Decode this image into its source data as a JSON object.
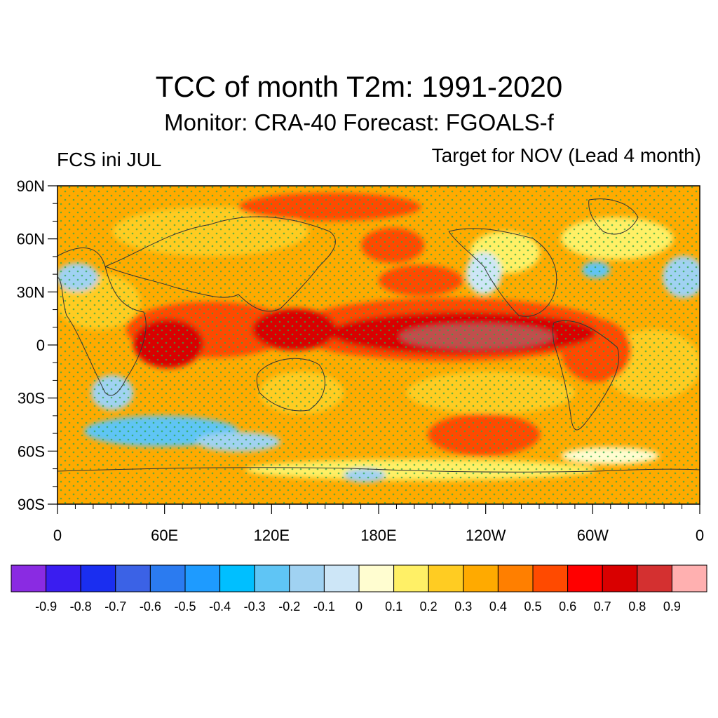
{
  "title": "TCC of month T2m: 1991-2020",
  "subtitle": "Monitor: CRA-40   Forecast: FGOALS-f",
  "left_label": "FCS ini JUL",
  "right_label": "Target for NOV (Lead 4 month)",
  "map": {
    "projection": "cylindrical equidistant",
    "lon_range": [
      0,
      360
    ],
    "lat_range": [
      -90,
      90
    ],
    "lat_labels": [
      "90N",
      "60N",
      "30N",
      "0",
      "30S",
      "60S",
      "90S"
    ],
    "lon_labels": [
      "0",
      "60E",
      "120E",
      "180E",
      "120W",
      "60W",
      "0"
    ],
    "stippling_color": "#2ea84a",
    "coastline_color": "#333333"
  },
  "colorbar": {
    "labels": [
      "-0.9",
      "-0.8",
      "-0.7",
      "-0.6",
      "-0.5",
      "-0.4",
      "-0.3",
      "-0.2",
      "-0.1",
      "0",
      "0.1",
      "0.2",
      "0.3",
      "0.4",
      "0.5",
      "0.6",
      "0.7",
      "0.8",
      "0.9"
    ],
    "colors": [
      "#8a2be2",
      "#3a1df0",
      "#1a2ef0",
      "#3b62e6",
      "#2b7bf0",
      "#1e9bff",
      "#00bfff",
      "#5fc5f5",
      "#a0d2f2",
      "#cde6f7",
      "#fffdd0",
      "#fff066",
      "#ffcc22",
      "#ffaa00",
      "#ff7f00",
      "#ff4a00",
      "#ff0000",
      "#d90000",
      "#d43030",
      "#ffb0b0"
    ]
  }
}
